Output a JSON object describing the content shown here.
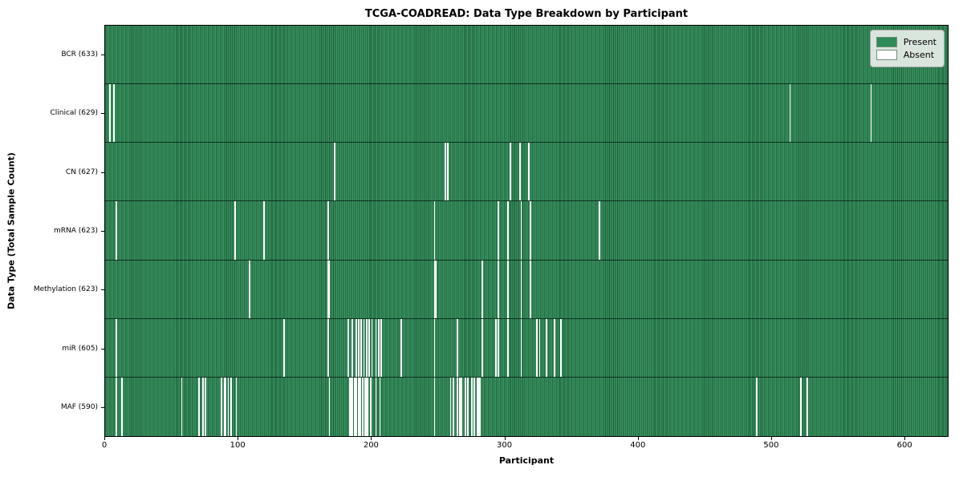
{
  "chart_data": {
    "type": "heatmap",
    "title": "TCGA-COADREAD: Data Type Breakdown by Participant",
    "xlabel": "Participant",
    "ylabel": "Data Type (Total Sample Count)",
    "x_ticks": [
      0,
      100,
      200,
      300,
      400,
      500,
      600
    ],
    "xlim": [
      0,
      633
    ],
    "n_participants": 633,
    "grid": false,
    "legend_position": "upper right",
    "colors": {
      "present": "#2e8b57",
      "absent": "#ffffff"
    },
    "legend": [
      {
        "label": "Present",
        "color": "#2e8b57"
      },
      {
        "label": "Absent",
        "color": "#ffffff"
      }
    ],
    "rows": [
      {
        "data_type": "BCR",
        "label": "BCR (633)",
        "present_count": 633,
        "absent_participants": []
      },
      {
        "data_type": "Clinical",
        "label": "Clinical (629)",
        "present_count": 629,
        "absent_participants": [
          3,
          6,
          514,
          575
        ]
      },
      {
        "data_type": "CN",
        "label": "CN (627)",
        "present_count": 627,
        "absent_participants": [
          172,
          255,
          257,
          304,
          311,
          318
        ]
      },
      {
        "data_type": "mRNA",
        "label": "mRNA (623)",
        "present_count": 623,
        "absent_participants": [
          8,
          97,
          119,
          167,
          247,
          295,
          302,
          312,
          319,
          371
        ]
      },
      {
        "data_type": "Methylation",
        "label": "Methylation (623)",
        "present_count": 623,
        "absent_participants": [
          108,
          167,
          168,
          247,
          248,
          283,
          295,
          302,
          312,
          319
        ]
      },
      {
        "data_type": "miR",
        "label": "miR (605)",
        "present_count": 605,
        "absent_participants": [
          8,
          134,
          167,
          182,
          185,
          188,
          190,
          192,
          194,
          196,
          198,
          200,
          203,
          205,
          207,
          222,
          247,
          264,
          283,
          293,
          295,
          302,
          312,
          324,
          326,
          331,
          337,
          342
        ]
      },
      {
        "data_type": "MAF",
        "label": "MAF (590)",
        "present_count": 590,
        "absent_participants": [
          8,
          12,
          57,
          70,
          73,
          75,
          87,
          89,
          90,
          92,
          94,
          98,
          168,
          183,
          184,
          185,
          187,
          188,
          190,
          191,
          193,
          195,
          196,
          197,
          199,
          203,
          206,
          247,
          259,
          261,
          264,
          266,
          267,
          270,
          272,
          275,
          277,
          279,
          280,
          281,
          489,
          522,
          527
        ]
      }
    ]
  }
}
